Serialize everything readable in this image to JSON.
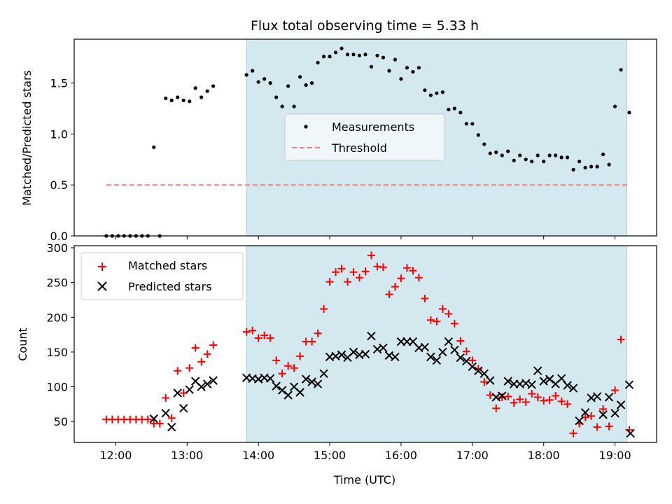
{
  "title": "Flux total observing time = 5.33 h",
  "shade_color": "#d3e9ef",
  "top": {
    "ylabel": "Matched/Predicted stars",
    "ylim": [
      0,
      1.93
    ],
    "yticks": [
      0.0,
      0.5,
      1.0,
      1.5
    ],
    "ytick_labels": [
      "0.0",
      "0.5",
      "1.0",
      "1.5"
    ],
    "legend": {
      "location": "center",
      "measurements": "Measurements",
      "threshold": "Threshold"
    }
  },
  "bottom": {
    "ylabel": "Count",
    "xlabel": "Time (UTC)",
    "ylim": [
      20,
      303
    ],
    "yticks": [
      50,
      100,
      150,
      200,
      250,
      300
    ],
    "ytick_labels": [
      "50",
      "100",
      "150",
      "200",
      "250",
      "300"
    ],
    "legend": {
      "location": "upper left",
      "matched": "Matched stars",
      "predicted": "Predicted stars"
    }
  },
  "xlim": [
    "11:25",
    "19:35"
  ],
  "xticks": [
    "12:00",
    "13:00",
    "14:00",
    "15:00",
    "16:00",
    "17:00",
    "18:00",
    "19:00"
  ],
  "colors": {
    "matched": "#ff0000",
    "predicted": "#000000",
    "measurements": "#000000",
    "threshold": "#f08080"
  },
  "chart_data": [
    {
      "type": "scatter",
      "title": "Flux total observing time = 5.33 h",
      "ylabel": "Matched/Predicted stars",
      "ylim": [
        0,
        1.93
      ],
      "shaded_range": [
        "13:50",
        "19:10"
      ],
      "threshold": {
        "value": 0.5,
        "x_range": [
          "11:52",
          "19:12"
        ]
      },
      "series": [
        {
          "name": "Measurements",
          "points": [
            [
              "11:52",
              0.0
            ],
            [
              "11:57",
              0.0
            ],
            [
              "12:02",
              0.0
            ],
            [
              "12:07",
              0.0
            ],
            [
              "12:12",
              0.0
            ],
            [
              "12:17",
              0.0
            ],
            [
              "12:22",
              0.0
            ],
            [
              "12:27",
              0.0
            ],
            [
              "12:32",
              0.87
            ],
            [
              "12:37",
              0.0
            ],
            [
              "12:42",
              1.35
            ],
            [
              "12:47",
              1.33
            ],
            [
              "12:52",
              1.36
            ],
            [
              "12:57",
              1.33
            ],
            [
              "13:02",
              1.32
            ],
            [
              "13:07",
              1.45
            ],
            [
              "13:12",
              1.36
            ],
            [
              "13:17",
              1.42
            ],
            [
              "13:22",
              1.47
            ],
            [
              "13:50",
              1.58
            ],
            [
              "13:55",
              1.62
            ],
            [
              "14:00",
              1.51
            ],
            [
              "14:05",
              1.54
            ],
            [
              "14:10",
              1.5
            ],
            [
              "14:15",
              1.36
            ],
            [
              "14:20",
              1.27
            ],
            [
              "14:25",
              1.47
            ],
            [
              "14:30",
              1.27
            ],
            [
              "14:35",
              1.56
            ],
            [
              "14:40",
              1.48
            ],
            [
              "14:45",
              1.5
            ],
            [
              "14:50",
              1.7
            ],
            [
              "14:55",
              1.76
            ],
            [
              "15:00",
              1.76
            ],
            [
              "15:05",
              1.8
            ],
            [
              "15:10",
              1.84
            ],
            [
              "15:15",
              1.78
            ],
            [
              "15:20",
              1.78
            ],
            [
              "15:25",
              1.77
            ],
            [
              "15:30",
              1.78
            ],
            [
              "15:35",
              1.66
            ],
            [
              "15:40",
              1.77
            ],
            [
              "15:45",
              1.75
            ],
            [
              "15:50",
              1.62
            ],
            [
              "15:55",
              1.73
            ],
            [
              "16:00",
              1.54
            ],
            [
              "16:05",
              1.65
            ],
            [
              "16:10",
              1.61
            ],
            [
              "16:15",
              1.65
            ],
            [
              "16:20",
              1.43
            ],
            [
              "16:25",
              1.38
            ],
            [
              "16:30",
              1.4
            ],
            [
              "16:35",
              1.41
            ],
            [
              "16:40",
              1.24
            ],
            [
              "16:45",
              1.25
            ],
            [
              "16:50",
              1.21
            ],
            [
              "16:55",
              1.1
            ],
            [
              "17:00",
              1.1
            ],
            [
              "17:05",
              0.99
            ],
            [
              "17:10",
              0.9
            ],
            [
              "17:15",
              0.81
            ],
            [
              "17:20",
              0.82
            ],
            [
              "17:25",
              0.79
            ],
            [
              "17:30",
              0.83
            ],
            [
              "17:35",
              0.74
            ],
            [
              "17:40",
              0.79
            ],
            [
              "17:45",
              0.75
            ],
            [
              "17:50",
              0.73
            ],
            [
              "17:55",
              0.79
            ],
            [
              "18:00",
              0.73
            ],
            [
              "18:05",
              0.79
            ],
            [
              "18:10",
              0.79
            ],
            [
              "18:15",
              0.77
            ],
            [
              "18:20",
              0.77
            ],
            [
              "18:25",
              0.65
            ],
            [
              "18:30",
              0.73
            ],
            [
              "18:35",
              0.67
            ],
            [
              "18:40",
              0.68
            ],
            [
              "18:45",
              0.68
            ],
            [
              "18:50",
              0.8
            ],
            [
              "18:55",
              0.7
            ],
            [
              "19:00",
              1.27
            ],
            [
              "19:05",
              1.63
            ],
            [
              "19:12",
              1.21
            ]
          ]
        },
        {
          "name": "Threshold",
          "points": [
            [
              "11:52",
              0.5
            ],
            [
              "19:12",
              0.5
            ]
          ]
        }
      ]
    },
    {
      "type": "scatter",
      "xlabel": "Time (UTC)",
      "ylabel": "Count",
      "ylim": [
        20,
        303
      ],
      "shaded_range": [
        "13:50",
        "19:10"
      ],
      "series": [
        {
          "name": "Matched stars",
          "points": [
            [
              "11:52",
              53
            ],
            [
              "11:57",
              53
            ],
            [
              "12:02",
              53
            ],
            [
              "12:07",
              53
            ],
            [
              "12:12",
              53
            ],
            [
              "12:17",
              53
            ],
            [
              "12:22",
              53
            ],
            [
              "12:27",
              53
            ],
            [
              "12:32",
              47
            ],
            [
              "12:37",
              47
            ],
            [
              "12:42",
              84
            ],
            [
              "12:47",
              55
            ],
            [
              "12:52",
              123
            ],
            [
              "12:57",
              91
            ],
            [
              "13:02",
              127
            ],
            [
              "13:07",
              156
            ],
            [
              "13:12",
              136
            ],
            [
              "13:17",
              147
            ],
            [
              "13:22",
              160
            ],
            [
              "13:50",
              179
            ],
            [
              "13:55",
              181
            ],
            [
              "14:00",
              170
            ],
            [
              "14:05",
              174
            ],
            [
              "14:10",
              170
            ],
            [
              "14:15",
              138
            ],
            [
              "14:20",
              119
            ],
            [
              "14:25",
              130
            ],
            [
              "14:30",
              127
            ],
            [
              "14:35",
              144
            ],
            [
              "14:40",
              165
            ],
            [
              "14:45",
              165
            ],
            [
              "14:50",
              177
            ],
            [
              "14:55",
              212
            ],
            [
              "15:00",
              251
            ],
            [
              "15:05",
              265
            ],
            [
              "15:10",
              270
            ],
            [
              "15:15",
              251
            ],
            [
              "15:20",
              265
            ],
            [
              "15:25",
              257
            ],
            [
              "15:30",
              266
            ],
            [
              "15:35",
              289
            ],
            [
              "15:40",
              273
            ],
            [
              "15:45",
              272
            ],
            [
              "15:50",
              233
            ],
            [
              "15:55",
              244
            ],
            [
              "16:00",
              256
            ],
            [
              "16:05",
              271
            ],
            [
              "16:10",
              267
            ],
            [
              "16:15",
              257
            ],
            [
              "16:20",
              227
            ],
            [
              "16:25",
              196
            ],
            [
              "16:30",
              194
            ],
            [
              "16:35",
              212
            ],
            [
              "16:40",
              205
            ],
            [
              "16:45",
              191
            ],
            [
              "16:50",
              166
            ],
            [
              "16:55",
              151
            ],
            [
              "17:00",
              138
            ],
            [
              "17:05",
              126
            ],
            [
              "17:10",
              107
            ],
            [
              "17:15",
              88
            ],
            [
              "17:20",
              69
            ],
            [
              "17:25",
              85
            ],
            [
              "17:30",
              86
            ],
            [
              "17:35",
              77
            ],
            [
              "17:40",
              82
            ],
            [
              "17:45",
              78
            ],
            [
              "17:50",
              90
            ],
            [
              "17:55",
              85
            ],
            [
              "18:00",
              80
            ],
            [
              "18:05",
              81
            ],
            [
              "18:10",
              87
            ],
            [
              "18:15",
              79
            ],
            [
              "18:20",
              75
            ],
            [
              "18:25",
              33
            ],
            [
              "18:30",
              47
            ],
            [
              "18:35",
              56
            ],
            [
              "18:40",
              58
            ],
            [
              "18:45",
              42
            ],
            [
              "18:50",
              68
            ],
            [
              "18:55",
              43
            ],
            [
              "19:00",
              95
            ],
            [
              "19:05",
              168
            ],
            [
              "19:12",
              38
            ]
          ]
        },
        {
          "name": "Predicted stars",
          "points": [
            [
              "12:32",
              54
            ],
            [
              "12:42",
              62
            ],
            [
              "12:47",
              42
            ],
            [
              "12:52",
              91
            ],
            [
              "12:57",
              69
            ],
            [
              "13:02",
              96
            ],
            [
              "13:07",
              108
            ],
            [
              "13:12",
              100
            ],
            [
              "13:17",
              104
            ],
            [
              "13:22",
              109
            ],
            [
              "13:50",
              113
            ],
            [
              "13:55",
              112
            ],
            [
              "14:00",
              111
            ],
            [
              "14:05",
              113
            ],
            [
              "14:10",
              112
            ],
            [
              "14:15",
              101
            ],
            [
              "14:20",
              95
            ],
            [
              "14:25",
              88
            ],
            [
              "14:30",
              100
            ],
            [
              "14:35",
              92
            ],
            [
              "14:40",
              111
            ],
            [
              "14:45",
              107
            ],
            [
              "14:50",
              104
            ],
            [
              "14:55",
              119
            ],
            [
              "15:00",
              143
            ],
            [
              "15:05",
              144
            ],
            [
              "15:10",
              146
            ],
            [
              "15:15",
              142
            ],
            [
              "15:20",
              150
            ],
            [
              "15:25",
              146
            ],
            [
              "15:30",
              147
            ],
            [
              "15:35",
              173
            ],
            [
              "15:40",
              154
            ],
            [
              "15:45",
              156
            ],
            [
              "15:50",
              145
            ],
            [
              "15:55",
              143
            ],
            [
              "16:00",
              165
            ],
            [
              "16:05",
              165
            ],
            [
              "16:10",
              165
            ],
            [
              "16:15",
              156
            ],
            [
              "16:20",
              157
            ],
            [
              "16:25",
              143
            ],
            [
              "16:30",
              138
            ],
            [
              "16:35",
              150
            ],
            [
              "16:40",
              165
            ],
            [
              "16:45",
              153
            ],
            [
              "16:50",
              142
            ],
            [
              "16:55",
              137
            ],
            [
              "17:00",
              129
            ],
            [
              "17:05",
              123
            ],
            [
              "17:10",
              119
            ],
            [
              "17:15",
              109
            ],
            [
              "17:20",
              85
            ],
            [
              "17:25",
              87
            ],
            [
              "17:30",
              108
            ],
            [
              "17:35",
              104
            ],
            [
              "17:40",
              104
            ],
            [
              "17:45",
              105
            ],
            [
              "17:50",
              103
            ],
            [
              "17:55",
              123
            ],
            [
              "18:00",
              108
            ],
            [
              "18:05",
              111
            ],
            [
              "18:10",
              104
            ],
            [
              "18:15",
              112
            ],
            [
              "18:20",
              102
            ],
            [
              "18:25",
              98
            ],
            [
              "18:30",
              51
            ],
            [
              "18:35",
              63
            ],
            [
              "18:40",
              84
            ],
            [
              "18:45",
              86
            ],
            [
              "18:50",
              60
            ],
            [
              "18:55",
              85
            ],
            [
              "19:00",
              62
            ],
            [
              "19:05",
              74
            ],
            [
              "19:12",
              103
            ],
            [
              "19:13",
              33
            ]
          ]
        }
      ]
    }
  ]
}
